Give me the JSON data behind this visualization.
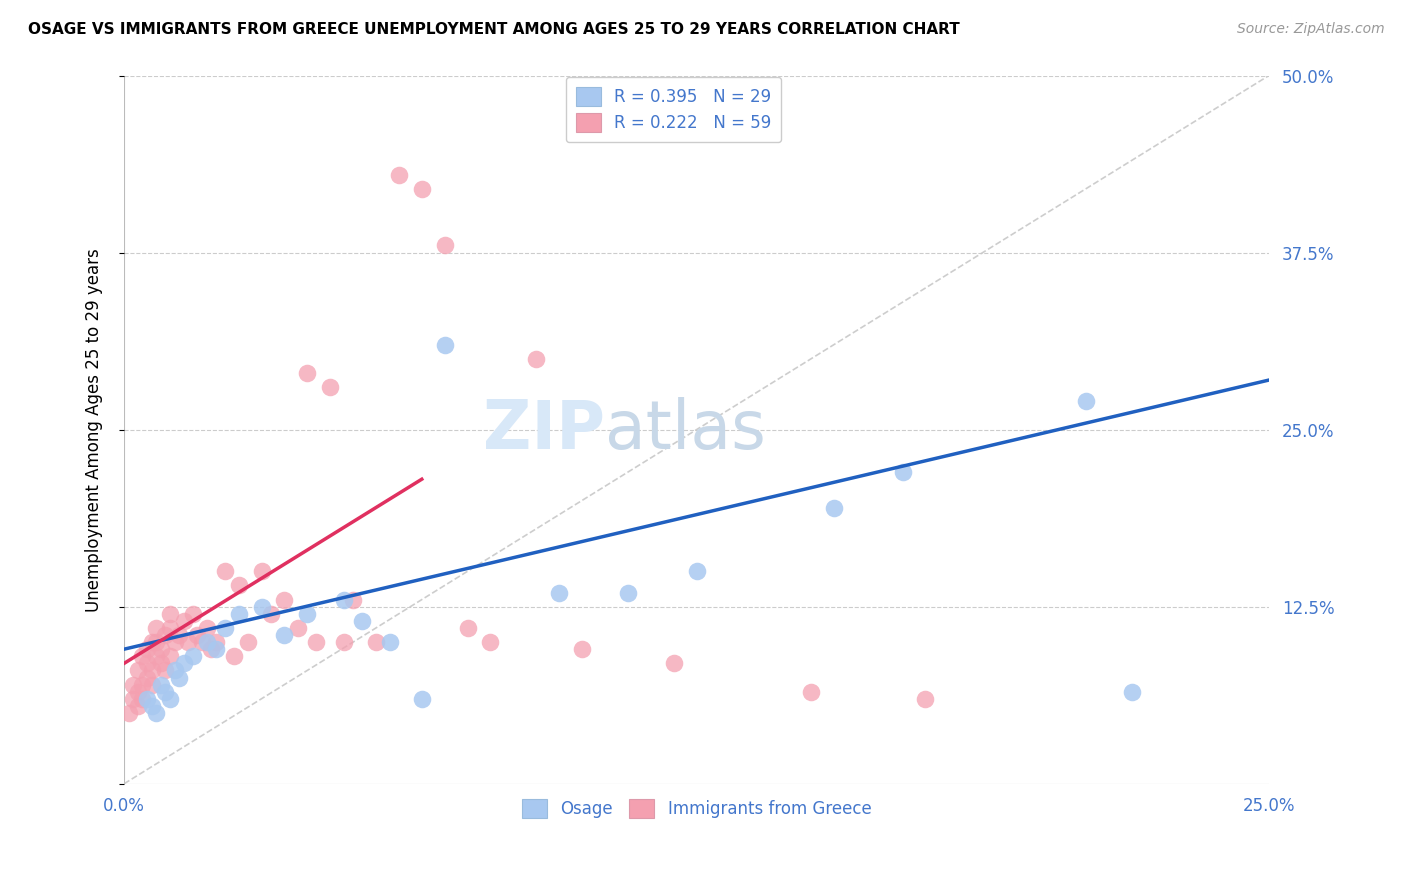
{
  "title": "OSAGE VS IMMIGRANTS FROM GREECE UNEMPLOYMENT AMONG AGES 25 TO 29 YEARS CORRELATION CHART",
  "source": "Source: ZipAtlas.com",
  "ylabel": "Unemployment Among Ages 25 to 29 years",
  "xlim": [
    0.0,
    0.25
  ],
  "ylim": [
    0.0,
    0.5
  ],
  "xticks": [
    0.0,
    0.05,
    0.1,
    0.15,
    0.2,
    0.25
  ],
  "xticklabels": [
    "0.0%",
    "",
    "",
    "",
    "",
    "25.0%"
  ],
  "yticks_right": [
    0.0,
    0.125,
    0.25,
    0.375,
    0.5
  ],
  "yticklabels_right": [
    "",
    "12.5%",
    "25.0%",
    "37.5%",
    "50.0%"
  ],
  "legend1_label": "R = 0.395   N = 29",
  "legend2_label": "R = 0.222   N = 59",
  "legend_bottom1": "Osage",
  "legend_bottom2": "Immigrants from Greece",
  "osage_color": "#a8c8f0",
  "greece_color": "#f4a0b0",
  "osage_line_color": "#2060c0",
  "greece_line_color": "#e03060",
  "diag_color": "#c8c8c8",
  "watermark_color": "#d8e8f8",
  "osage_x": [
    0.005,
    0.006,
    0.007,
    0.008,
    0.009,
    0.01,
    0.011,
    0.012,
    0.013,
    0.015,
    0.018,
    0.02,
    0.022,
    0.025,
    0.03,
    0.035,
    0.04,
    0.048,
    0.052,
    0.058,
    0.065,
    0.07,
    0.095,
    0.11,
    0.125,
    0.155,
    0.17,
    0.21,
    0.22
  ],
  "osage_y": [
    0.06,
    0.055,
    0.05,
    0.07,
    0.065,
    0.06,
    0.08,
    0.075,
    0.085,
    0.09,
    0.1,
    0.095,
    0.11,
    0.12,
    0.125,
    0.105,
    0.12,
    0.13,
    0.115,
    0.1,
    0.06,
    0.31,
    0.135,
    0.135,
    0.15,
    0.195,
    0.22,
    0.27,
    0.065
  ],
  "greece_x": [
    0.001,
    0.002,
    0.002,
    0.003,
    0.003,
    0.003,
    0.004,
    0.004,
    0.004,
    0.005,
    0.005,
    0.005,
    0.006,
    0.006,
    0.006,
    0.007,
    0.007,
    0.007,
    0.008,
    0.008,
    0.009,
    0.009,
    0.01,
    0.01,
    0.01,
    0.011,
    0.012,
    0.013,
    0.014,
    0.015,
    0.016,
    0.017,
    0.018,
    0.019,
    0.02,
    0.022,
    0.024,
    0.025,
    0.027,
    0.03,
    0.032,
    0.035,
    0.038,
    0.04,
    0.042,
    0.045,
    0.048,
    0.05,
    0.055,
    0.06,
    0.065,
    0.07,
    0.075,
    0.08,
    0.09,
    0.1,
    0.12,
    0.15,
    0.175
  ],
  "greece_y": [
    0.05,
    0.06,
    0.07,
    0.055,
    0.065,
    0.08,
    0.06,
    0.07,
    0.09,
    0.075,
    0.085,
    0.095,
    0.07,
    0.08,
    0.1,
    0.09,
    0.1,
    0.11,
    0.085,
    0.095,
    0.08,
    0.105,
    0.09,
    0.11,
    0.12,
    0.1,
    0.105,
    0.115,
    0.1,
    0.12,
    0.105,
    0.1,
    0.11,
    0.095,
    0.1,
    0.15,
    0.09,
    0.14,
    0.1,
    0.15,
    0.12,
    0.13,
    0.11,
    0.29,
    0.1,
    0.28,
    0.1,
    0.13,
    0.1,
    0.43,
    0.42,
    0.38,
    0.11,
    0.1,
    0.3,
    0.095,
    0.085,
    0.065,
    0.06
  ],
  "osage_trend": [
    0.0,
    0.25,
    0.095,
    0.285
  ],
  "greece_trend_x": [
    0.0,
    0.065
  ],
  "greece_trend_y": [
    0.085,
    0.215
  ]
}
